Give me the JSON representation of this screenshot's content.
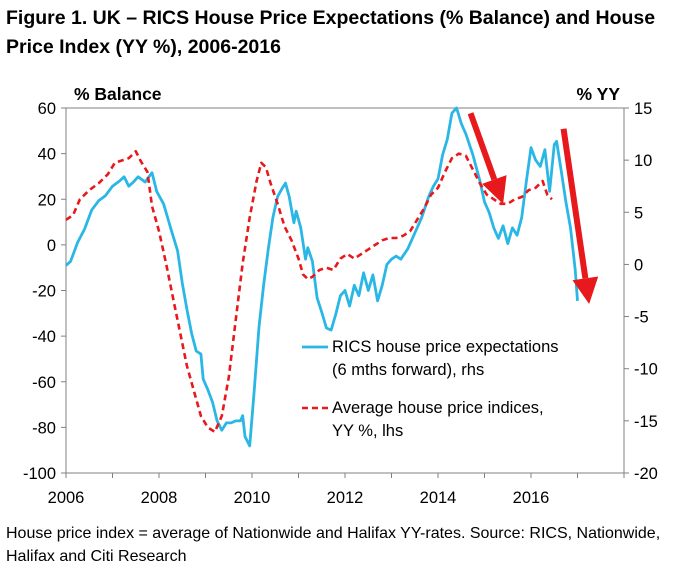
{
  "figure": {
    "title": "Figure 1. UK – RICS House Price Expectations (% Balance) and House Price Index (YY %), 2006-2016",
    "source": "House price index = average of Nationwide and Halifax YY-rates. Source: RICS, Nationwide, Halifax and Citi Research"
  },
  "chart_data": {
    "type": "line",
    "x_axis": {
      "min": 2006,
      "max": 2018,
      "ticks": [
        2006,
        2008,
        2010,
        2012,
        2014,
        2016
      ]
    },
    "left_axis": {
      "label": "% Balance",
      "min": -100,
      "max": 60,
      "ticks": [
        60,
        40,
        20,
        0,
        -20,
        -40,
        -60,
        -80,
        -100
      ]
    },
    "right_axis": {
      "label": "% YY",
      "min": -20,
      "max": 15,
      "ticks": [
        15,
        10,
        5,
        0,
        -5,
        -10,
        -15,
        -20
      ]
    },
    "legend": {
      "placement": "center-right"
    },
    "grid": false,
    "series": [
      {
        "name": "RICS house price expectations (6 mths forward), rhs",
        "axis": "right",
        "color": "#2ab7e6",
        "style": "solid",
        "points": [
          [
            2006.0,
            -0.1
          ],
          [
            2006.1,
            0.3
          ],
          [
            2006.25,
            2.1
          ],
          [
            2006.4,
            3.4
          ],
          [
            2006.55,
            5.2
          ],
          [
            2006.7,
            6.1
          ],
          [
            2006.85,
            6.6
          ],
          [
            2007.0,
            7.5
          ],
          [
            2007.15,
            8.0
          ],
          [
            2007.25,
            8.4
          ],
          [
            2007.35,
            7.5
          ],
          [
            2007.45,
            7.9
          ],
          [
            2007.55,
            8.4
          ],
          [
            2007.7,
            7.9
          ],
          [
            2007.85,
            8.8
          ],
          [
            2007.95,
            7.0
          ],
          [
            2008.1,
            5.8
          ],
          [
            2008.25,
            3.5
          ],
          [
            2008.4,
            1.3
          ],
          [
            2008.5,
            -1.8
          ],
          [
            2008.6,
            -4.3
          ],
          [
            2008.7,
            -6.6
          ],
          [
            2008.8,
            -8.3
          ],
          [
            2008.9,
            -8.6
          ],
          [
            2008.95,
            -11.0
          ],
          [
            2009.05,
            -12.0
          ],
          [
            2009.15,
            -13.2
          ],
          [
            2009.25,
            -15.0
          ],
          [
            2009.35,
            -15.9
          ],
          [
            2009.45,
            -15.2
          ],
          [
            2009.55,
            -15.2
          ],
          [
            2009.65,
            -15.0
          ],
          [
            2009.75,
            -15.0
          ],
          [
            2009.8,
            -14.5
          ],
          [
            2009.85,
            -16.5
          ],
          [
            2009.95,
            -17.4
          ],
          [
            2010.05,
            -12.0
          ],
          [
            2010.15,
            -6.0
          ],
          [
            2010.25,
            -2.0
          ],
          [
            2010.35,
            1.5
          ],
          [
            2010.45,
            4.5
          ],
          [
            2010.55,
            6.5
          ],
          [
            2010.65,
            7.3
          ],
          [
            2010.72,
            7.8
          ],
          [
            2010.8,
            6.5
          ],
          [
            2010.9,
            4.0
          ],
          [
            2010.95,
            5.1
          ],
          [
            2011.05,
            3.5
          ],
          [
            2011.15,
            0.5
          ],
          [
            2011.2,
            1.6
          ],
          [
            2011.3,
            0.3
          ],
          [
            2011.4,
            -3.2
          ],
          [
            2011.5,
            -4.6
          ],
          [
            2011.6,
            -6.1
          ],
          [
            2011.7,
            -6.3
          ],
          [
            2011.8,
            -4.8
          ],
          [
            2011.9,
            -3.0
          ],
          [
            2012.0,
            -2.5
          ],
          [
            2012.1,
            -4.0
          ],
          [
            2012.2,
            -2.0
          ],
          [
            2012.3,
            -3.0
          ],
          [
            2012.4,
            -0.8
          ],
          [
            2012.5,
            -2.5
          ],
          [
            2012.6,
            -1.0
          ],
          [
            2012.7,
            -3.5
          ],
          [
            2012.8,
            -2.0
          ],
          [
            2012.9,
            0.0
          ],
          [
            2013.0,
            0.5
          ],
          [
            2013.1,
            0.8
          ],
          [
            2013.2,
            0.5
          ],
          [
            2013.35,
            1.5
          ],
          [
            2013.5,
            3.0
          ],
          [
            2013.65,
            4.5
          ],
          [
            2013.8,
            6.5
          ],
          [
            2013.9,
            7.5
          ],
          [
            2014.0,
            8.2
          ],
          [
            2014.1,
            10.5
          ],
          [
            2014.2,
            12.0
          ],
          [
            2014.3,
            14.5
          ],
          [
            2014.4,
            15.0
          ],
          [
            2014.5,
            13.5
          ],
          [
            2014.6,
            12.5
          ],
          [
            2014.75,
            10.5
          ],
          [
            2014.9,
            8.0
          ],
          [
            2015.0,
            6.0
          ],
          [
            2015.1,
            5.0
          ],
          [
            2015.2,
            3.5
          ],
          [
            2015.3,
            2.5
          ],
          [
            2015.4,
            3.7
          ],
          [
            2015.5,
            2.0
          ],
          [
            2015.6,
            3.5
          ],
          [
            2015.7,
            2.8
          ],
          [
            2015.8,
            4.5
          ],
          [
            2015.9,
            8.0
          ],
          [
            2016.0,
            11.2
          ],
          [
            2016.1,
            10.0
          ],
          [
            2016.2,
            9.4
          ],
          [
            2016.3,
            11.0
          ],
          [
            2016.4,
            7.0
          ],
          [
            2016.5,
            11.5
          ],
          [
            2016.55,
            11.8
          ],
          [
            2016.65,
            9.0
          ],
          [
            2016.75,
            6.0
          ],
          [
            2016.85,
            3.5
          ],
          [
            2016.95,
            -0.5
          ],
          [
            2017.0,
            -3.5
          ]
        ]
      },
      {
        "name": "Average house price indices, YY %, lhs",
        "axis": "left",
        "color": "#e8191c",
        "style": "dashed",
        "points": [
          [
            2006.0,
            11
          ],
          [
            2006.15,
            13
          ],
          [
            2006.3,
            20
          ],
          [
            2006.5,
            24
          ],
          [
            2006.7,
            27
          ],
          [
            2006.9,
            31
          ],
          [
            2007.05,
            36
          ],
          [
            2007.2,
            37
          ],
          [
            2007.35,
            38
          ],
          [
            2007.5,
            41
          ],
          [
            2007.6,
            37
          ],
          [
            2007.75,
            32
          ],
          [
            2007.85,
            17
          ],
          [
            2008.0,
            6
          ],
          [
            2008.15,
            -8
          ],
          [
            2008.3,
            -23
          ],
          [
            2008.45,
            -38
          ],
          [
            2008.6,
            -53
          ],
          [
            2008.75,
            -64
          ],
          [
            2008.9,
            -75
          ],
          [
            2009.05,
            -80
          ],
          [
            2009.2,
            -82
          ],
          [
            2009.35,
            -75
          ],
          [
            2009.5,
            -58
          ],
          [
            2009.65,
            -33
          ],
          [
            2009.8,
            -8
          ],
          [
            2009.95,
            12
          ],
          [
            2010.1,
            28
          ],
          [
            2010.2,
            36
          ],
          [
            2010.3,
            34
          ],
          [
            2010.4,
            27
          ],
          [
            2010.55,
            18
          ],
          [
            2010.7,
            8
          ],
          [
            2010.85,
            2
          ],
          [
            2011.0,
            -6
          ],
          [
            2011.1,
            -13
          ],
          [
            2011.2,
            -15
          ],
          [
            2011.3,
            -14
          ],
          [
            2011.45,
            -11
          ],
          [
            2011.6,
            -10
          ],
          [
            2011.75,
            -11
          ],
          [
            2011.9,
            -6
          ],
          [
            2012.05,
            -4
          ],
          [
            2012.2,
            -6
          ],
          [
            2012.35,
            -4
          ],
          [
            2012.5,
            -2
          ],
          [
            2012.65,
            0
          ],
          [
            2012.8,
            2
          ],
          [
            2012.95,
            3
          ],
          [
            2013.1,
            3
          ],
          [
            2013.25,
            4
          ],
          [
            2013.4,
            6
          ],
          [
            2013.55,
            11
          ],
          [
            2013.7,
            16
          ],
          [
            2013.85,
            22
          ],
          [
            2014.0,
            25
          ],
          [
            2014.15,
            32
          ],
          [
            2014.3,
            38
          ],
          [
            2014.45,
            40
          ],
          [
            2014.6,
            39
          ],
          [
            2014.75,
            33
          ],
          [
            2014.9,
            27
          ],
          [
            2015.05,
            22
          ],
          [
            2015.2,
            20
          ],
          [
            2015.35,
            18
          ],
          [
            2015.5,
            18
          ],
          [
            2015.65,
            20
          ],
          [
            2015.8,
            21
          ],
          [
            2015.95,
            24
          ],
          [
            2016.1,
            25
          ],
          [
            2016.25,
            28
          ],
          [
            2016.35,
            22
          ],
          [
            2016.45,
            20
          ]
        ]
      }
    ],
    "annotations": [
      {
        "type": "arrow",
        "color": "#e8191c",
        "from": [
          2014.7,
          14.5
        ],
        "to": [
          2015.4,
          5.8
        ],
        "axis": "right"
      },
      {
        "type": "arrow",
        "color": "#e8191c",
        "from": [
          2016.7,
          13.0
        ],
        "to": [
          2017.25,
          -3.8
        ],
        "axis": "right"
      }
    ]
  }
}
